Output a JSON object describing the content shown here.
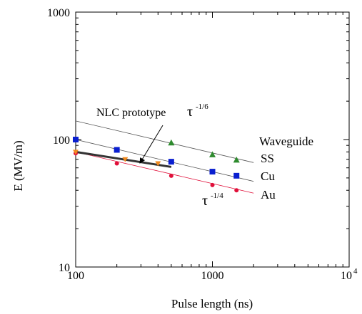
{
  "chart_data": {
    "type": "scatter",
    "xlabel": "Pulse length (ns)",
    "ylabel": "E (MV/m)",
    "x_scale": "log",
    "y_scale": "log",
    "xlim": [
      100,
      10000
    ],
    "ylim": [
      10,
      1000
    ],
    "x_ticks": [
      {
        "value": 100,
        "label": "100"
      },
      {
        "value": 1000,
        "label": "1000"
      },
      {
        "value": 10000,
        "label_base": "10",
        "label_exp": "4"
      }
    ],
    "y_ticks": [
      {
        "value": 10,
        "label": "10"
      },
      {
        "value": 100,
        "label": "100"
      },
      {
        "value": 1000,
        "label": "1000"
      }
    ],
    "grid": false,
    "series": [
      {
        "name": "SS",
        "marker": "triangle",
        "color": "#2e8b2e",
        "x": [
          500,
          1000,
          1500
        ],
        "y": [
          94,
          76,
          69
        ],
        "fit": {
          "x": [
            100,
            2000
          ],
          "y": [
            140,
            66
          ]
        }
      },
      {
        "name": "Cu",
        "marker": "square",
        "color": "#0a1fd0",
        "x": [
          100,
          200,
          500,
          1000,
          1500
        ],
        "y": [
          100,
          83,
          67,
          56,
          52
        ],
        "fit": {
          "x": [
            100,
            2000
          ],
          "y": [
            100,
            47
          ]
        }
      },
      {
        "name": "Au",
        "marker": "circle",
        "color": "#e0103a",
        "x": [
          100,
          200,
          500,
          1000,
          1500
        ],
        "y": [
          78,
          65,
          52,
          44,
          40
        ],
        "fit": {
          "x": [
            100,
            2000
          ],
          "y": [
            80,
            38
          ]
        }
      },
      {
        "name": "NLC prototype",
        "marker": "triangle-down",
        "color": "#f08a20",
        "x": [
          100,
          230,
          400
        ],
        "y": [
          80,
          70,
          65
        ],
        "fit": {
          "x": [
            100,
            500
          ],
          "y": [
            80,
            61
          ]
        }
      }
    ],
    "legend": {
      "title": "Waveguide",
      "entries": [
        "SS",
        "Cu",
        "Au"
      ],
      "placement": "right"
    },
    "annotations": {
      "nlc_label": "NLC prototype",
      "tau_sixth_base": "τ",
      "tau_sixth_exp": "-1/6",
      "tau_quarter_base": "τ",
      "tau_quarter_exp": "-1/4"
    }
  }
}
